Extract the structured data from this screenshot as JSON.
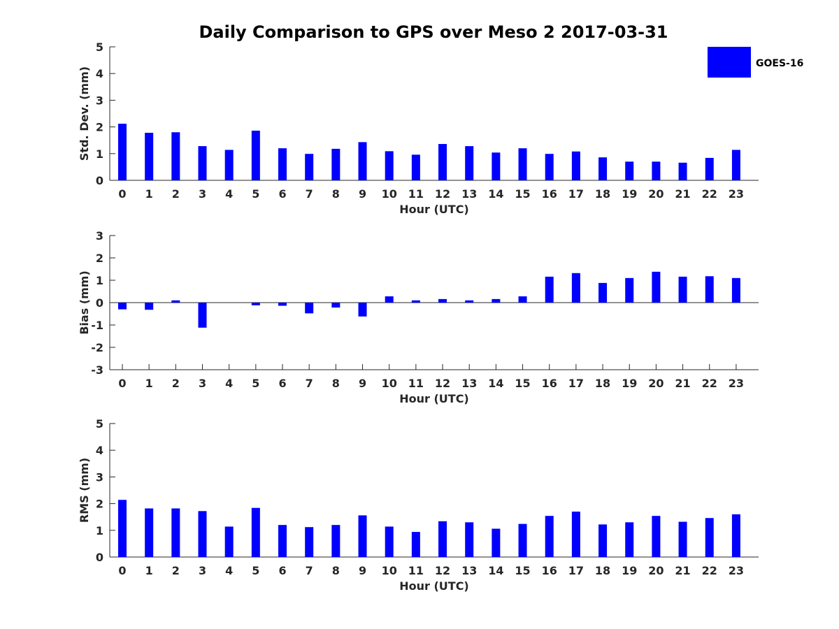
{
  "title": "Daily Comparison to GPS over Meso 2 2017-03-31",
  "legend": {
    "label": "GOES-16",
    "color": "#0000ff",
    "placement": "top-right"
  },
  "chart_data": [
    {
      "type": "bar",
      "categories": [
        "0",
        "1",
        "2",
        "3",
        "4",
        "5",
        "6",
        "7",
        "8",
        "9",
        "10",
        "11",
        "12",
        "13",
        "14",
        "15",
        "16",
        "17",
        "18",
        "19",
        "20",
        "21",
        "22",
        "23"
      ],
      "series": [
        {
          "name": "GOES-16",
          "values": [
            2.12,
            1.78,
            1.8,
            1.28,
            1.14,
            1.86,
            1.2,
            0.99,
            1.18,
            1.43,
            1.09,
            0.96,
            1.36,
            1.28,
            1.04,
            1.2,
            0.99,
            1.08,
            0.86,
            0.7,
            0.7,
            0.66,
            0.84,
            1.14
          ]
        }
      ],
      "xlabel": "Hour (UTC)",
      "ylabel": "Std. Dev. (mm)",
      "ylim": [
        0,
        5
      ],
      "yticks": [
        "0",
        "1",
        "2",
        "3",
        "4",
        "5"
      ],
      "grid": false
    },
    {
      "type": "bar",
      "categories": [
        "0",
        "1",
        "2",
        "3",
        "4",
        "5",
        "6",
        "7",
        "8",
        "9",
        "10",
        "11",
        "12",
        "13",
        "14",
        "15",
        "16",
        "17",
        "18",
        "19",
        "20",
        "21",
        "22",
        "23"
      ],
      "series": [
        {
          "name": "GOES-16",
          "values": [
            -0.3,
            -0.32,
            0.1,
            -1.12,
            0.0,
            -0.12,
            -0.14,
            -0.48,
            -0.22,
            -0.62,
            0.28,
            0.1,
            0.16,
            0.1,
            0.16,
            0.28,
            1.16,
            1.32,
            0.88,
            1.1,
            1.38,
            1.16,
            1.18,
            1.1
          ]
        }
      ],
      "xlabel": "Hour (UTC)",
      "ylabel": "Bias (mm)",
      "ylim": [
        -3,
        3
      ],
      "yticks": [
        "-3",
        "-2",
        "-1",
        "0",
        "1",
        "2",
        "3"
      ],
      "zero_line": true,
      "grid": false
    },
    {
      "type": "bar",
      "categories": [
        "0",
        "1",
        "2",
        "3",
        "4",
        "5",
        "6",
        "7",
        "8",
        "9",
        "10",
        "11",
        "12",
        "13",
        "14",
        "15",
        "16",
        "17",
        "18",
        "19",
        "20",
        "21",
        "22",
        "23"
      ],
      "series": [
        {
          "name": "GOES-16",
          "values": [
            2.14,
            1.82,
            1.82,
            1.72,
            1.14,
            1.84,
            1.2,
            1.12,
            1.2,
            1.56,
            1.14,
            0.94,
            1.34,
            1.3,
            1.06,
            1.24,
            1.54,
            1.7,
            1.22,
            1.3,
            1.54,
            1.32,
            1.46,
            1.6
          ]
        }
      ],
      "xlabel": "Hour (UTC)",
      "ylabel": "RMS (mm)",
      "ylim": [
        0,
        5
      ],
      "yticks": [
        "0",
        "1",
        "2",
        "3",
        "4",
        "5"
      ],
      "grid": false
    }
  ]
}
